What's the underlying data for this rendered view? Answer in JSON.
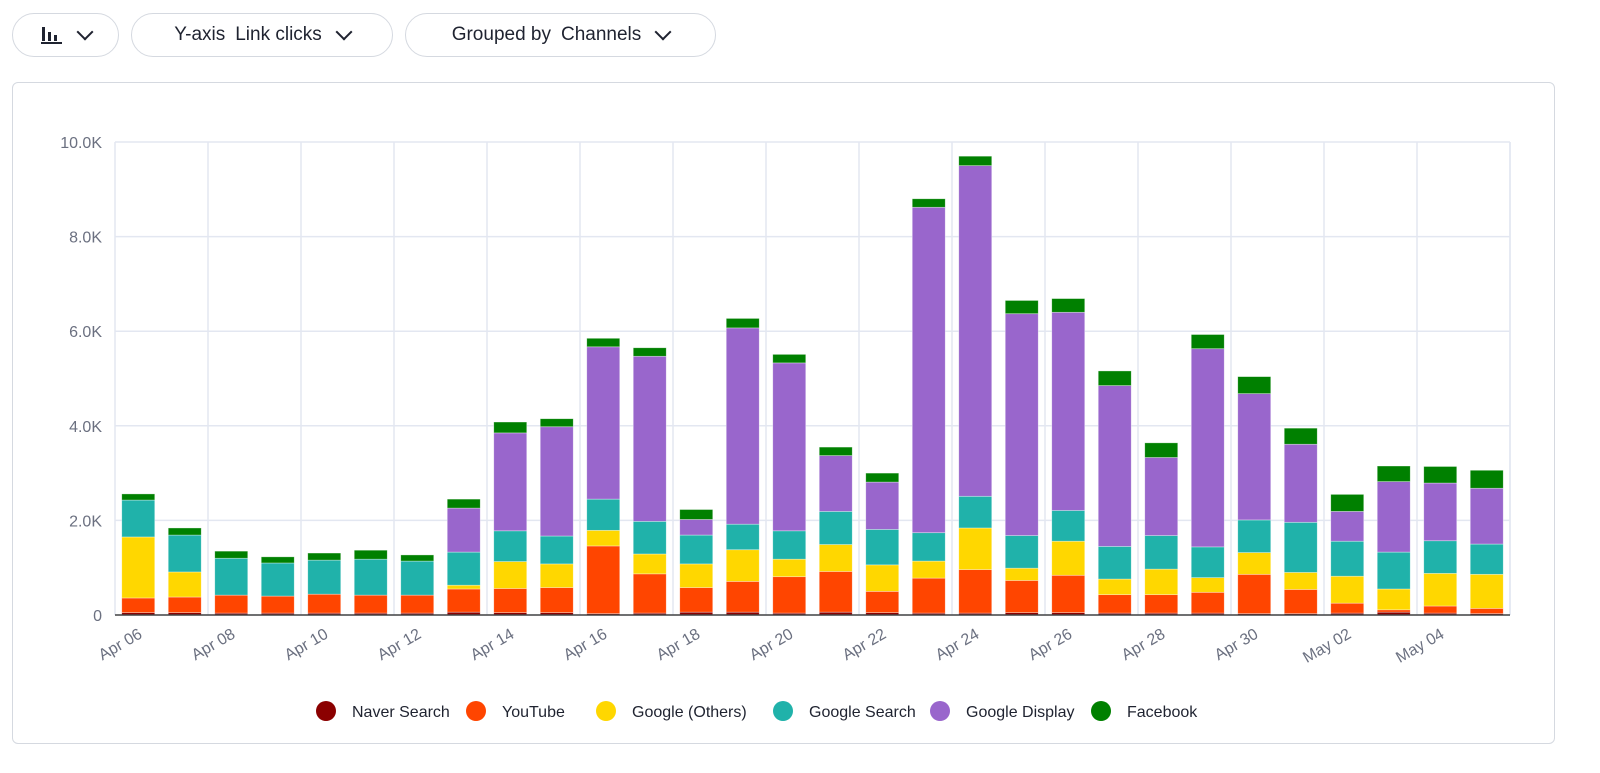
{
  "toolbar": {
    "chart_type_icon": "bar-chart-icon",
    "yaxis_label": "Y-axis",
    "yaxis_value": "Link clicks",
    "group_label": "Grouped by",
    "group_value": "Channels"
  },
  "chart_data": {
    "type": "bar",
    "stacked": true,
    "grid": true,
    "legend_position": "bottom",
    "ylim": [
      0,
      10000
    ],
    "yticks": [
      "0",
      "2.0K",
      "4.0K",
      "6.0K",
      "8.0K",
      "10.0K"
    ],
    "categories": [
      "Apr 06",
      "Apr 07",
      "Apr 08",
      "Apr 09",
      "Apr 10",
      "Apr 11",
      "Apr 12",
      "Apr 13",
      "Apr 14",
      "Apr 15",
      "Apr 16",
      "Apr 17",
      "Apr 18",
      "Apr 19",
      "Apr 20",
      "Apr 21",
      "Apr 22",
      "Apr 23",
      "Apr 24",
      "Apr 25",
      "Apr 26",
      "Apr 27",
      "Apr 28",
      "Apr 29",
      "Apr 30",
      "May 01",
      "May 02",
      "May 03",
      "May 04",
      "May 05"
    ],
    "xtick_labels": [
      "Apr 06",
      "Apr 08",
      "Apr 10",
      "Apr 12",
      "Apr 14",
      "Apr 16",
      "Apr 18",
      "Apr 20",
      "Apr 22",
      "Apr 24",
      "Apr 26",
      "Apr 28",
      "Apr 30",
      "May 02",
      "May 04"
    ],
    "series": [
      {
        "name": "Naver Search",
        "color": "#8b0000",
        "values": [
          50,
          50,
          40,
          40,
          40,
          40,
          40,
          60,
          50,
          50,
          30,
          40,
          60,
          60,
          40,
          60,
          50,
          40,
          40,
          50,
          50,
          40,
          40,
          40,
          30,
          30,
          40,
          60,
          40,
          30
        ]
      },
      {
        "name": "YouTube",
        "color": "#ff4500",
        "values": [
          310,
          330,
          380,
          360,
          400,
          380,
          380,
          490,
          510,
          530,
          1430,
          830,
          520,
          650,
          770,
          860,
          450,
          740,
          920,
          680,
          790,
          390,
          390,
          440,
          830,
          510,
          210,
          50,
          150,
          110
        ]
      },
      {
        "name": "Google (Others)",
        "color": "#ffd700",
        "values": [
          1290,
          530,
          0,
          0,
          0,
          0,
          0,
          80,
          570,
          500,
          330,
          420,
          500,
          670,
          370,
          570,
          560,
          360,
          880,
          260,
          720,
          330,
          540,
          310,
          460,
          360,
          570,
          440,
          690,
          720
        ]
      },
      {
        "name": "Google Search",
        "color": "#20b2aa",
        "values": [
          780,
          780,
          780,
          700,
          720,
          760,
          720,
          700,
          650,
          590,
          660,
          690,
          610,
          540,
          600,
          700,
          750,
          600,
          670,
          690,
          650,
          690,
          710,
          650,
          690,
          1060,
          740,
          780,
          690,
          640
        ]
      },
      {
        "name": "Google Display",
        "color": "#9966cc",
        "values": [
          0,
          0,
          0,
          0,
          0,
          0,
          0,
          930,
          2070,
          2310,
          3220,
          3490,
          330,
          4150,
          3550,
          1180,
          1000,
          6880,
          6990,
          4690,
          4190,
          3400,
          1650,
          4190,
          2670,
          1650,
          630,
          1490,
          1220,
          1180
        ]
      },
      {
        "name": "Facebook",
        "color": "#008000",
        "values": [
          130,
          150,
          150,
          130,
          150,
          190,
          130,
          190,
          230,
          170,
          180,
          180,
          210,
          200,
          180,
          180,
          190,
          180,
          200,
          280,
          290,
          310,
          310,
          300,
          360,
          340,
          360,
          330,
          350,
          380
        ]
      }
    ]
  }
}
